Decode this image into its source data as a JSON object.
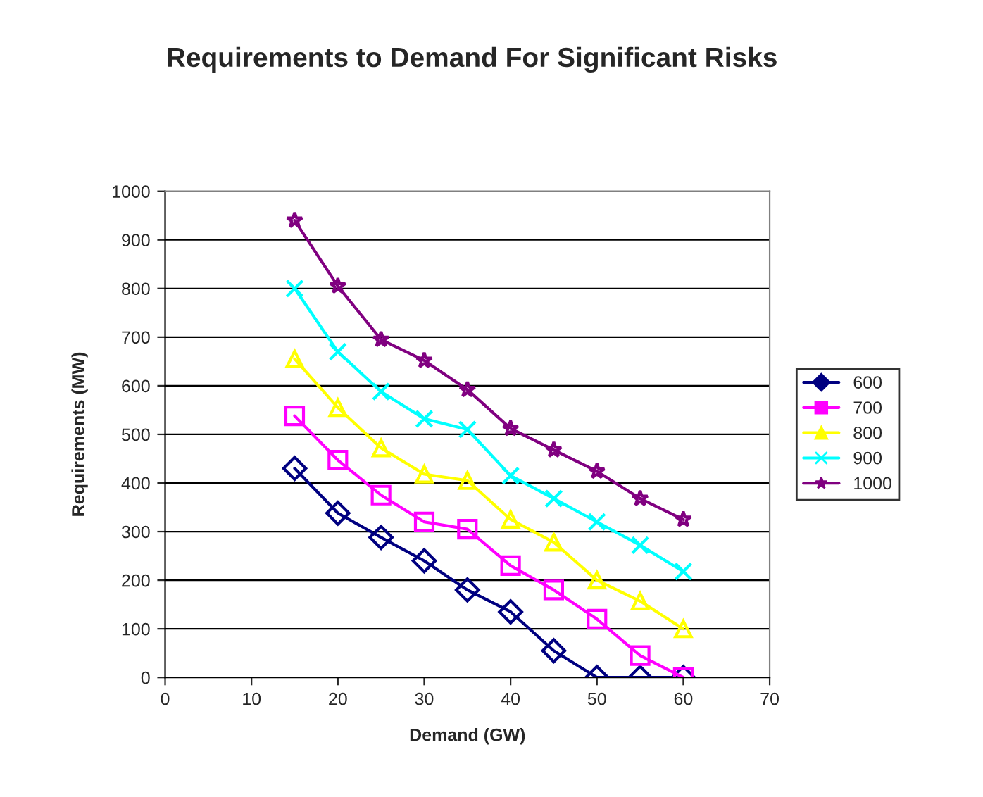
{
  "chart_data": {
    "type": "line",
    "title": "Requirements to Demand For Significant Risks",
    "xlabel": "Demand (GW)",
    "ylabel": "Requirements (MW)",
    "x": [
      15,
      20,
      25,
      30,
      35,
      40,
      45,
      50,
      55,
      60
    ],
    "series": [
      {
        "name": "600",
        "color": "#000080",
        "marker": "diamond",
        "values": [
          430,
          338,
          288,
          240,
          180,
          135,
          55,
          0,
          0,
          0
        ]
      },
      {
        "name": "700",
        "color": "#ff00ff",
        "marker": "square",
        "values": [
          538,
          447,
          375,
          320,
          305,
          230,
          180,
          120,
          45,
          0
        ]
      },
      {
        "name": "800",
        "color": "#ffff00",
        "marker": "triangle",
        "values": [
          655,
          555,
          472,
          418,
          405,
          325,
          278,
          200,
          157,
          100
        ]
      },
      {
        "name": "900",
        "color": "#00ffff",
        "marker": "cross",
        "values": [
          800,
          670,
          588,
          532,
          510,
          415,
          368,
          320,
          272,
          218
        ]
      },
      {
        "name": "1000",
        "color": "#800080",
        "marker": "star",
        "values": [
          940,
          805,
          695,
          652,
          592,
          512,
          468,
          424,
          368,
          325
        ]
      }
    ],
    "xlim": [
      0,
      70
    ],
    "xticks": [
      0,
      10,
      20,
      30,
      40,
      50,
      60,
      70
    ],
    "ylim": [
      0,
      1000
    ],
    "yticks": [
      0,
      100,
      200,
      300,
      400,
      500,
      600,
      700,
      800,
      900,
      1000
    ],
    "grid": "y",
    "legend": "right",
    "line_style": "solid"
  }
}
